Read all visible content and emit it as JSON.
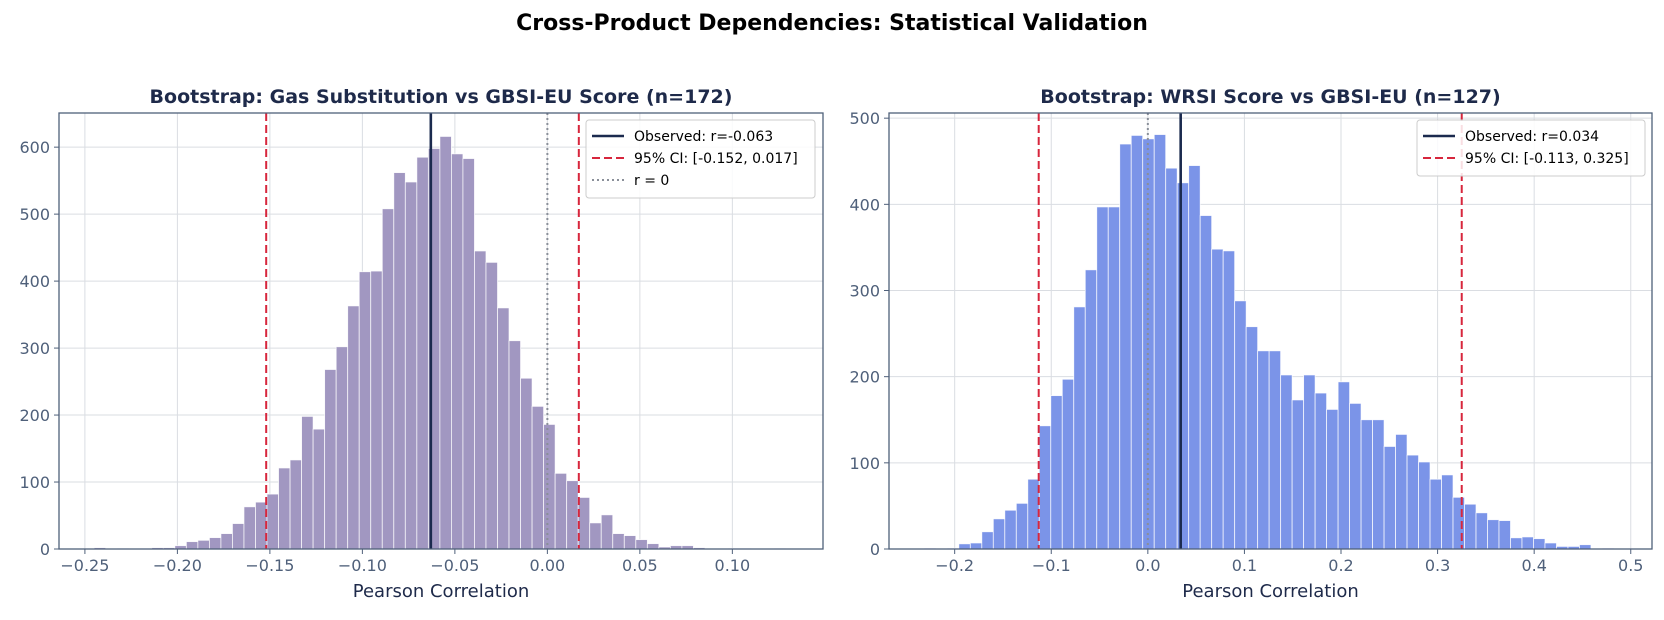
{
  "figure": {
    "title": "Cross-Product Dependencies: Statistical Validation"
  },
  "chart_data": [
    {
      "type": "bar",
      "subtype": "histogram",
      "title": "Bootstrap: Gas Substitution vs GBSI-EU Score (n=172)",
      "xlabel": "Pearson Correlation",
      "ylabel": "",
      "bin_start": -0.245,
      "bin_width": 0.00623,
      "values": [
        2,
        0,
        1,
        0,
        1,
        2,
        2,
        5,
        11,
        13,
        17,
        23,
        38,
        63,
        70,
        82,
        121,
        133,
        198,
        179,
        268,
        302,
        363,
        414,
        415,
        508,
        562,
        548,
        585,
        598,
        616,
        590,
        583,
        445,
        428,
        360,
        311,
        255,
        213,
        186,
        113,
        102,
        77,
        39,
        51,
        23,
        20,
        14,
        8,
        3,
        5,
        5,
        2,
        0,
        0,
        1,
        1,
        0,
        0,
        1
      ],
      "xlim": [
        -0.264,
        0.149
      ],
      "ylim": [
        0,
        651
      ],
      "xticks": [
        -0.25,
        -0.2,
        -0.15,
        -0.1,
        -0.05,
        0.0,
        0.05,
        0.1
      ],
      "xtick_labels": [
        "−0.25",
        "−0.20",
        "−0.15",
        "−0.10",
        "−0.05",
        "0.00",
        "0.05",
        "0.10"
      ],
      "yticks": [
        0,
        100,
        200,
        300,
        400,
        500,
        600
      ],
      "ytick_labels": [
        "0",
        "100",
        "200",
        "300",
        "400",
        "500",
        "600"
      ],
      "grid": true,
      "bar_color": "#a197c1",
      "lines": [
        {
          "kind": "observed",
          "x": -0.063,
          "color": "#1b2a4e",
          "style": "solid",
          "label": "Observed: r=-0.063"
        },
        {
          "kind": "ci",
          "x": [
            -0.152,
            0.017
          ],
          "color": "#d7263d",
          "style": "dashed",
          "label": "95% CI: [-0.152, 0.017]"
        },
        {
          "kind": "zero",
          "x": 0,
          "color": "#8a8f99",
          "style": "dotted",
          "label": "r = 0"
        }
      ],
      "legend_position": "upper right"
    },
    {
      "type": "bar",
      "subtype": "histogram",
      "title": "Bootstrap: WRSI Score vs GBSI-EU (n=127)",
      "xlabel": "Pearson Correlation",
      "ylabel": "",
      "bin_start": -0.2314,
      "bin_width": 0.0119,
      "values": [
        1,
        0,
        1,
        6,
        7,
        20,
        35,
        45,
        53,
        81,
        143,
        178,
        197,
        281,
        324,
        397,
        397,
        470,
        480,
        476,
        481,
        442,
        425,
        445,
        387,
        348,
        346,
        288,
        258,
        230,
        230,
        202,
        173,
        202,
        181,
        162,
        194,
        169,
        150,
        150,
        119,
        133,
        109,
        101,
        81,
        86,
        60,
        52,
        42,
        34,
        33,
        13,
        14,
        12,
        7,
        3,
        3,
        5,
        0,
        1
      ],
      "xlim": [
        -0.268,
        0.522
      ],
      "ylim": [
        0,
        506
      ],
      "xticks": [
        -0.2,
        -0.1,
        0.0,
        0.1,
        0.2,
        0.3,
        0.4,
        0.5
      ],
      "xtick_labels": [
        "−0.2",
        "−0.1",
        "0.0",
        "0.1",
        "0.2",
        "0.3",
        "0.4",
        "0.5"
      ],
      "yticks": [
        0,
        100,
        200,
        300,
        400,
        500
      ],
      "ytick_labels": [
        "0",
        "100",
        "200",
        "300",
        "400",
        "500"
      ],
      "grid": true,
      "bar_color": "#7b94e8",
      "lines": [
        {
          "kind": "observed",
          "x": 0.034,
          "color": "#1b2a4e",
          "style": "solid",
          "label": "Observed: r=0.034"
        },
        {
          "kind": "ci",
          "x": [
            -0.113,
            0.325
          ],
          "color": "#d7263d",
          "style": "dashed",
          "label": "95% CI: [-0.113, 0.325]"
        },
        {
          "kind": "zero",
          "x": 0,
          "color": "#8a8f99",
          "style": "dotted",
          "label": ""
        }
      ],
      "legend_position": "upper right"
    }
  ]
}
